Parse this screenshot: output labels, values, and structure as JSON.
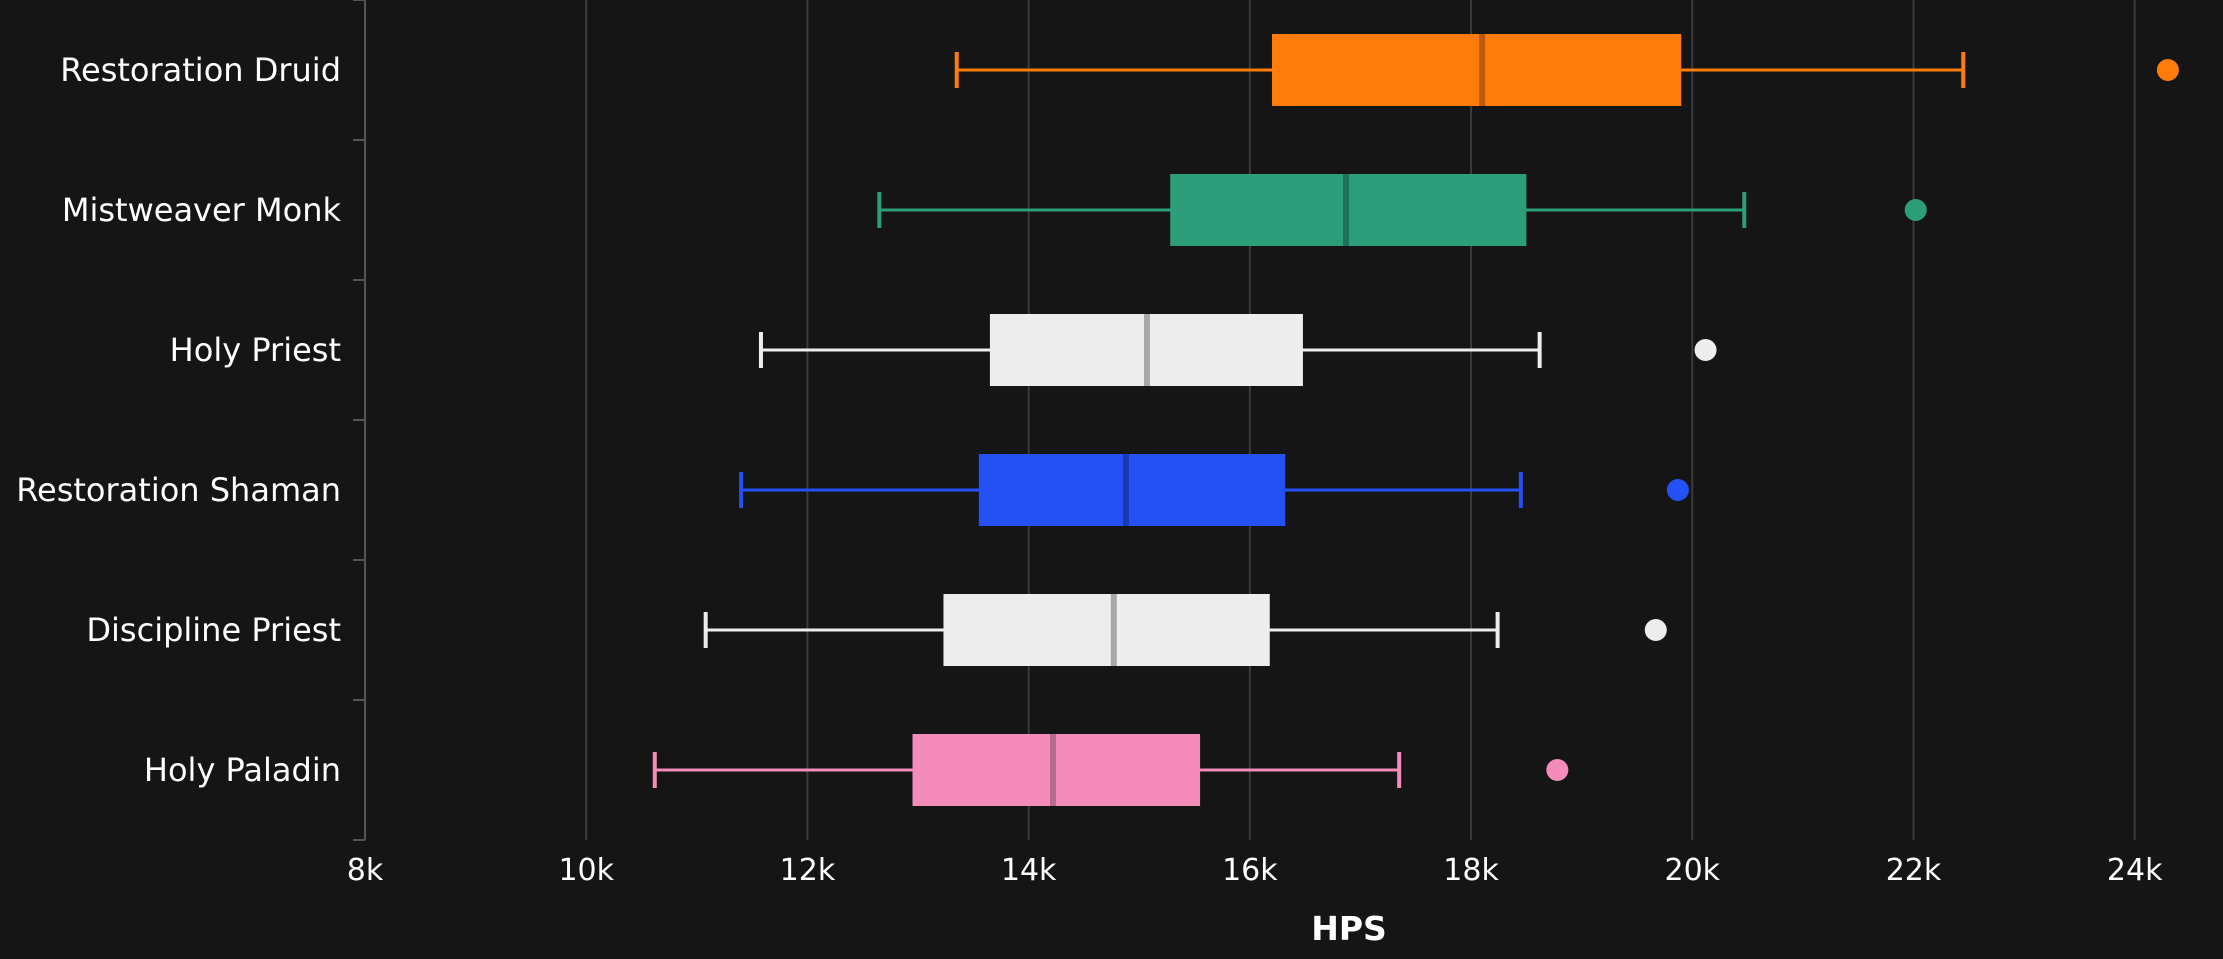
{
  "chart_data": {
    "type": "box",
    "orientation": "horizontal",
    "xlabel": "HPS",
    "xlim": [
      8000,
      24500
    ],
    "xticks": [
      8000,
      10000,
      12000,
      14000,
      16000,
      18000,
      20000,
      22000,
      24000
    ],
    "xtick_labels": [
      "8k",
      "10k",
      "12k",
      "14k",
      "16k",
      "18k",
      "20k",
      "22k",
      "24k"
    ],
    "grid": "vertical",
    "categories": [
      "Restoration Druid",
      "Mistweaver Monk",
      "Holy Priest",
      "Restoration Shaman",
      "Discipline Priest",
      "Holy Paladin"
    ],
    "series": [
      {
        "category": "Restoration Druid",
        "color": "#FF7C0A",
        "median_color": "#B85A08",
        "whisker_low": 13350,
        "q1": 16200,
        "median": 18100,
        "q3": 19900,
        "whisker_high": 22450,
        "outliers": [
          24300
        ]
      },
      {
        "category": "Mistweaver Monk",
        "color": "#2C9E7A",
        "median_color": "#1E7058",
        "whisker_low": 12650,
        "q1": 15280,
        "median": 16870,
        "q3": 18500,
        "whisker_high": 20470,
        "outliers": [
          22020
        ]
      },
      {
        "category": "Holy Priest",
        "color": "#EDEDED",
        "median_color": "#A8A8A8",
        "whisker_low": 11580,
        "q1": 13650,
        "median": 15070,
        "q3": 16480,
        "whisker_high": 18620,
        "outliers": [
          20120
        ]
      },
      {
        "category": "Restoration Shaman",
        "color": "#2451F5",
        "median_color": "#1A3BB0",
        "whisker_low": 11400,
        "q1": 13550,
        "median": 14880,
        "q3": 16320,
        "whisker_high": 18450,
        "outliers": [
          19870
        ]
      },
      {
        "category": "Discipline Priest",
        "color": "#EDEDED",
        "median_color": "#A8A8A8",
        "whisker_low": 11080,
        "q1": 13230,
        "median": 14770,
        "q3": 16180,
        "whisker_high": 18240,
        "outliers": [
          19670
        ]
      },
      {
        "category": "Holy Paladin",
        "color": "#F48CBA",
        "median_color": "#B86A8C",
        "whisker_low": 10620,
        "q1": 12950,
        "median": 14220,
        "q3": 15550,
        "whisker_high": 17350,
        "outliers": [
          18780
        ]
      }
    ]
  }
}
